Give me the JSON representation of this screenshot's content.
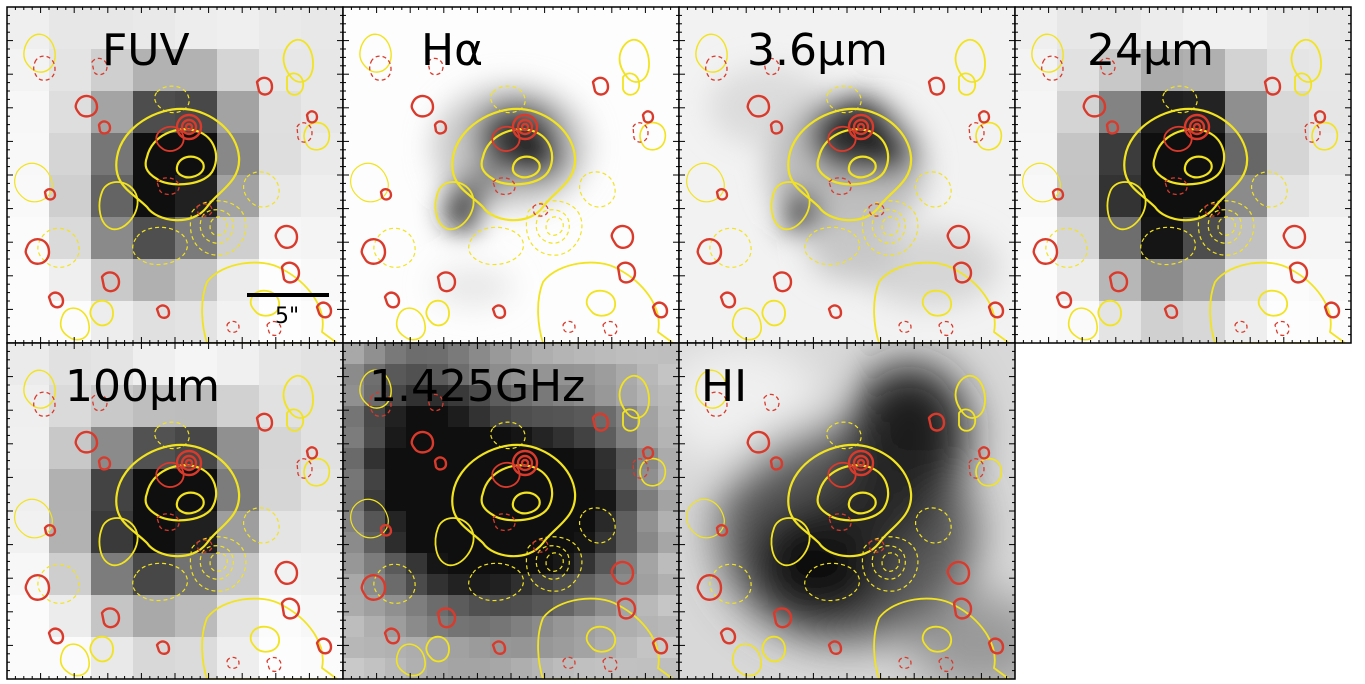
{
  "panels": [
    {
      "label": "FUV",
      "style": "pixel",
      "grid": 8
    },
    {
      "label": "Hα",
      "style": "smooth"
    },
    {
      "label": "3.6μm",
      "style": "smooth"
    },
    {
      "label": "24μm",
      "style": "pixel",
      "grid": 8
    },
    {
      "label": "100μm",
      "style": "pixel",
      "grid": 8
    },
    {
      "label": "1.425GHz",
      "style": "pixel",
      "grid": 16
    },
    {
      "label": "HI",
      "style": "smooth"
    }
  ],
  "scale_bar": {
    "label": "5\""
  },
  "colors": {
    "contour_positive_red": "#d93a2b",
    "contour_yellow": "#f2e31f",
    "background": "#ffffff",
    "axes": "#000000"
  }
}
